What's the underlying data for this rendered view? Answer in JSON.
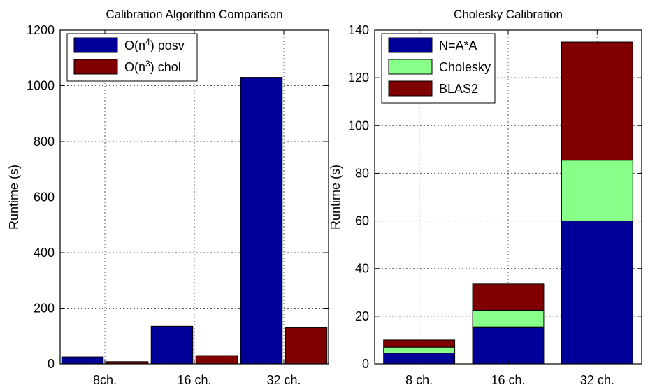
{
  "chart_data": [
    {
      "type": "bar",
      "title": "Calibration Algorithm Comparison",
      "xlabel": "",
      "ylabel": "Runtime (s)",
      "categories": [
        "8ch.",
        "16 ch.",
        "32 ch."
      ],
      "ylim": [
        0,
        1200
      ],
      "yticks": [
        0,
        200,
        400,
        600,
        800,
        1000,
        1200
      ],
      "grid": true,
      "legend_position": "top-left",
      "series": [
        {
          "name": "O(n⁴) posv",
          "legend_base": "O(n",
          "legend_exp": "4",
          "legend_tail": ") posv",
          "color": "#000099",
          "values": [
            25,
            135,
            1030
          ]
        },
        {
          "name": "O(n³) chol",
          "legend_base": "O(n",
          "legend_exp": "3",
          "legend_tail": ") chol",
          "color": "#800000",
          "values": [
            8,
            30,
            132
          ]
        }
      ]
    },
    {
      "type": "bar",
      "stacked": true,
      "title": "Cholesky Calibration",
      "xlabel": "",
      "ylabel": "Runtime (s)",
      "categories": [
        "8 ch.",
        "16 ch.",
        "32 ch."
      ],
      "ylim": [
        0,
        140
      ],
      "yticks": [
        0,
        20,
        40,
        60,
        80,
        100,
        120,
        140
      ],
      "grid": true,
      "legend_position": "top-left",
      "series": [
        {
          "name": "N=A*A",
          "color": "#000099",
          "values": [
            4.5,
            15.5,
            60
          ]
        },
        {
          "name": "Cholesky",
          "color": "#88ff88",
          "values": [
            2.5,
            7,
            25.5
          ]
        },
        {
          "name": "BLAS2",
          "color": "#800000",
          "values": [
            3,
            11,
            49.5
          ]
        }
      ]
    }
  ]
}
